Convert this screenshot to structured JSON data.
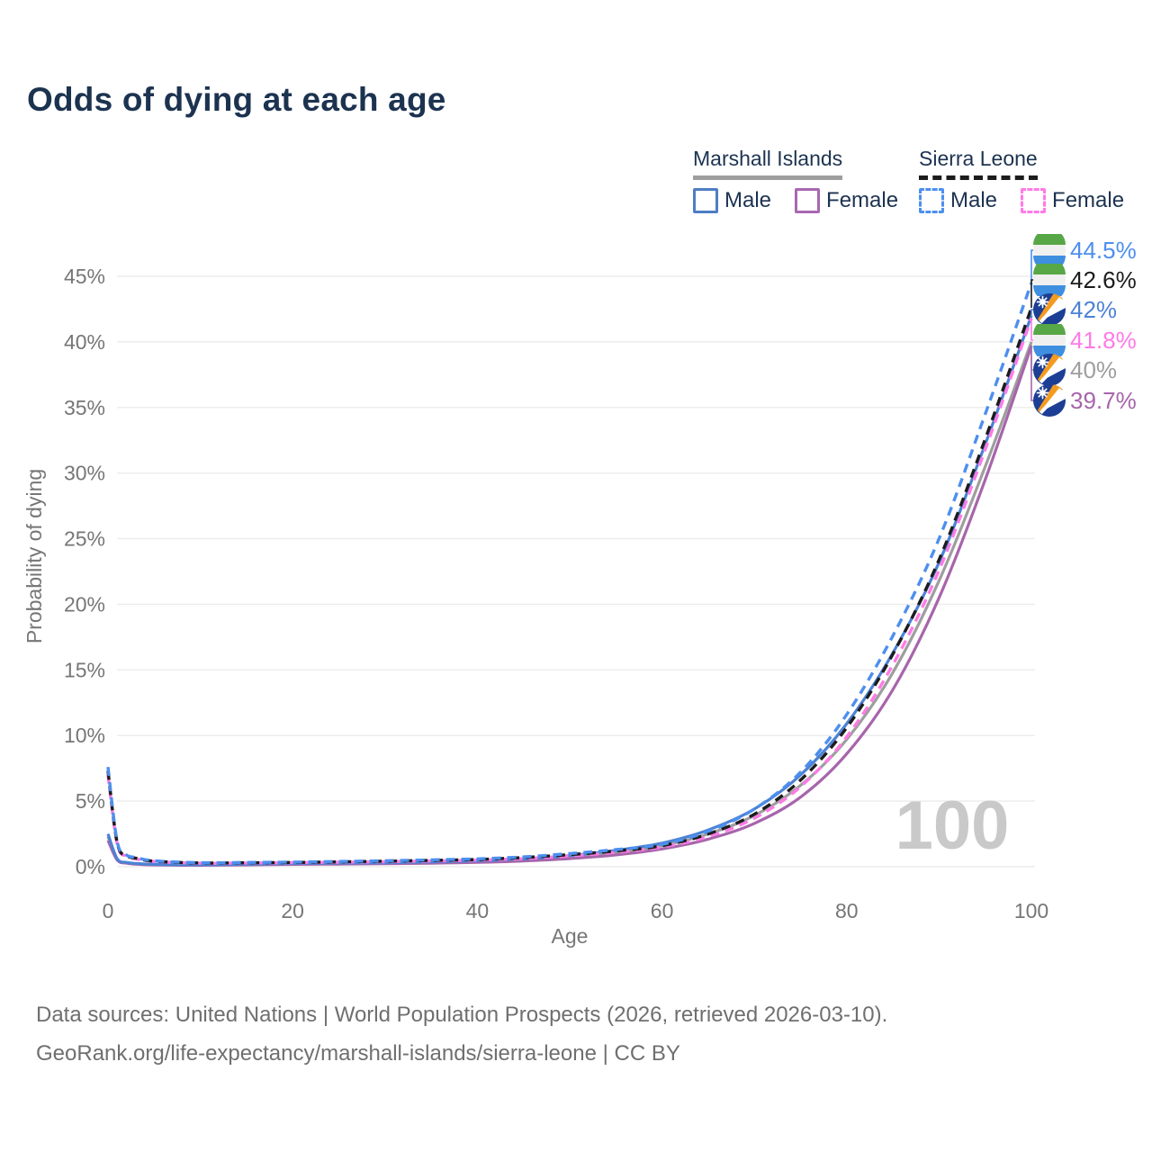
{
  "title": "Odds of dying at each age",
  "legend": {
    "groups": [
      {
        "label": "Marshall Islands",
        "underline_style": "solid",
        "underline_color": "#9e9e9e",
        "items": [
          {
            "label": "Male",
            "color": "#4d7ec3",
            "dashed": false
          },
          {
            "label": "Female",
            "color": "#a868b0",
            "dashed": false
          }
        ]
      },
      {
        "label": "Sierra Leone",
        "underline_style": "dashed",
        "underline_color": "#1c1c1c",
        "items": [
          {
            "label": "Male",
            "color": "#4d8fee",
            "dashed": true
          },
          {
            "label": "Female",
            "color": "#ff7ae6",
            "dashed": true
          }
        ]
      }
    ]
  },
  "chart_data": {
    "type": "line",
    "title": "Odds of dying at each age",
    "xlabel": "Age",
    "ylabel": "Probability of dying",
    "xlim": [
      0,
      100
    ],
    "ylim": [
      0,
      45
    ],
    "grid": true,
    "x_ticks": [
      0,
      20,
      40,
      60,
      80,
      100
    ],
    "x_tick_labels": [
      "0",
      "20",
      "40",
      "60",
      "80",
      "100"
    ],
    "y_ticks": [
      0,
      5,
      10,
      15,
      20,
      25,
      30,
      35,
      40,
      45
    ],
    "y_tick_labels": [
      "0%",
      "5%",
      "10%",
      "15%",
      "20%",
      "25%",
      "30%",
      "35%",
      "40%",
      "45%"
    ],
    "watermark": "100",
    "x": [
      0,
      1,
      2,
      3,
      5,
      10,
      15,
      20,
      25,
      30,
      35,
      40,
      45,
      50,
      55,
      60,
      65,
      70,
      75,
      80,
      85,
      90,
      95,
      100
    ],
    "series": [
      {
        "name": "Marshall Islands (both sexes)",
        "flag": "marshall-islands",
        "color": "#9e9e9e",
        "dashed": false,
        "end_label": "40%",
        "values": [
          2.3,
          0.55,
          0.3,
          0.22,
          0.16,
          0.13,
          0.17,
          0.22,
          0.25,
          0.27,
          0.32,
          0.4,
          0.53,
          0.75,
          1.1,
          1.6,
          2.5,
          3.9,
          6.2,
          9.7,
          14.8,
          21.8,
          30.5,
          40.0
        ]
      },
      {
        "name": "Marshall Islands Female",
        "flag": "marshall-islands",
        "color": "#a765ab",
        "dashed": false,
        "end_label": "39.7%",
        "values": [
          2.0,
          0.5,
          0.27,
          0.2,
          0.14,
          0.11,
          0.14,
          0.18,
          0.2,
          0.23,
          0.27,
          0.33,
          0.44,
          0.62,
          0.9,
          1.35,
          2.1,
          3.3,
          5.3,
          8.6,
          13.5,
          20.5,
          29.5,
          39.7
        ]
      },
      {
        "name": "Marshall Islands Male",
        "flag": "marshall-islands",
        "color": "#4c82d4",
        "dashed": false,
        "end_label": "42%",
        "values": [
          2.5,
          0.6,
          0.33,
          0.25,
          0.18,
          0.15,
          0.2,
          0.25,
          0.28,
          0.3,
          0.37,
          0.45,
          0.6,
          0.85,
          1.25,
          1.8,
          2.8,
          4.4,
          7.0,
          10.9,
          16.3,
          23.2,
          32.2,
          42.0
        ]
      },
      {
        "name": "Sierra Leone Female",
        "flag": "sierra-leone",
        "color": "#ff7ae6",
        "dashed": true,
        "end_label": "41.8%",
        "values": [
          7.0,
          1.7,
          0.8,
          0.6,
          0.4,
          0.26,
          0.28,
          0.3,
          0.34,
          0.38,
          0.43,
          0.5,
          0.62,
          0.82,
          1.1,
          1.5,
          2.3,
          3.7,
          6.1,
          9.9,
          15.4,
          22.6,
          31.8,
          41.8
        ]
      },
      {
        "name": "Sierra Leone (both sexes)",
        "flag": "sierra-leone",
        "color": "#1c1c1c",
        "dashed": true,
        "end_label": "42.6%",
        "values": [
          7.3,
          1.8,
          0.85,
          0.65,
          0.42,
          0.28,
          0.3,
          0.32,
          0.37,
          0.42,
          0.48,
          0.55,
          0.7,
          0.92,
          1.2,
          1.6,
          2.5,
          4.0,
          6.6,
          10.6,
          16.2,
          23.4,
          32.6,
          42.6
        ]
      },
      {
        "name": "Sierra Leone Male",
        "flag": "sierra-leone",
        "color": "#4d8fee",
        "dashed": true,
        "end_label": "44.5%",
        "values": [
          7.6,
          1.9,
          0.9,
          0.7,
          0.45,
          0.3,
          0.32,
          0.35,
          0.4,
          0.45,
          0.52,
          0.6,
          0.75,
          1.0,
          1.3,
          1.7,
          2.7,
          4.4,
          7.2,
          11.6,
          17.6,
          25.0,
          34.5,
          44.5
        ]
      }
    ],
    "legend_position": "top-right"
  },
  "footer": {
    "line1": "Data sources: United Nations | World Population Prospects (2026, retrieved 2026-03-10).",
    "line2": "GeoRank.org/life-expectancy/marshall-islands/sierra-leone | CC BY"
  }
}
